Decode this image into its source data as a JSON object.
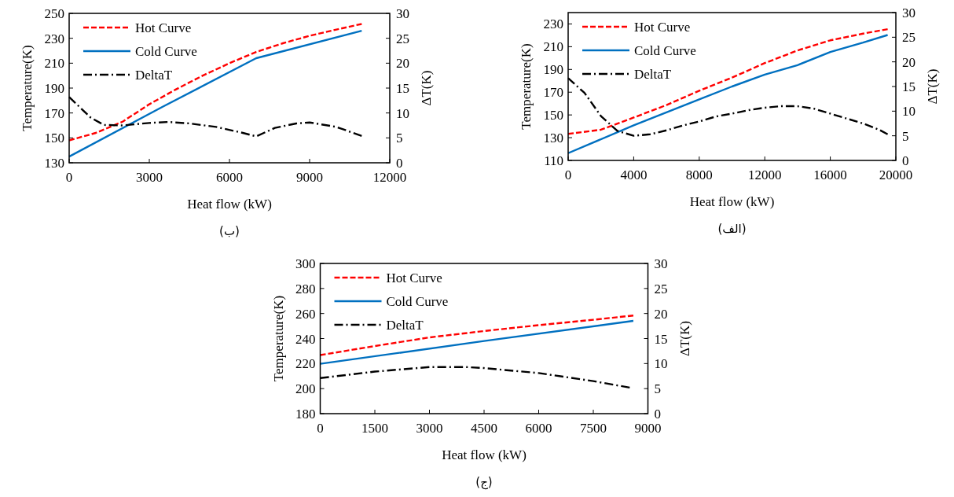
{
  "chart_data": [
    {
      "type": "line",
      "xlabel": "Heat flow (kW)",
      "ylabel": "Temperature(K)",
      "y2label": "ΔT(K)",
      "xlim": [
        0,
        12000
      ],
      "xticks": [
        0,
        3000,
        6000,
        9000,
        12000
      ],
      "ylim": [
        130,
        250
      ],
      "yticks": [
        130,
        150,
        170,
        190,
        210,
        230,
        250
      ],
      "y2lim": [
        0,
        30
      ],
      "y2ticks": [
        0,
        5,
        10,
        15,
        20,
        25,
        30
      ],
      "legend": "top left",
      "annotations": [
        "(ب)"
      ],
      "series": [
        {
          "name": "Hot Curve",
          "color": "#ff0000",
          "line_style": "dashed",
          "x": [
            0,
            1000,
            2000,
            3000,
            4000,
            5000,
            6000,
            7000,
            8000,
            9000,
            10000,
            10950
          ],
          "values": [
            148,
            154,
            163,
            177,
            189,
            200,
            210,
            219,
            226,
            232,
            237,
            241.5
          ]
        },
        {
          "name": "Cold Curve",
          "color": "#0070c0",
          "line_style": "solid",
          "x": [
            0,
            3500,
            7000,
            10950
          ],
          "values": [
            135,
            175,
            214,
            236
          ]
        },
        {
          "name": "DeltaT",
          "color": "#000000",
          "line_style": "dashdot",
          "axis": "y2",
          "x": [
            0,
            800,
            1300,
            2000,
            3000,
            3700,
            4500,
            5500,
            6500,
            7000,
            7700,
            8500,
            9000,
            10000,
            10950
          ],
          "values": [
            13.2,
            9.1,
            7.6,
            7.5,
            8.0,
            8.2,
            7.9,
            7.2,
            6.0,
            5.3,
            7.0,
            7.9,
            8.1,
            7.2,
            5.4
          ]
        }
      ]
    },
    {
      "type": "line",
      "xlabel": "Heat flow (kW)",
      "ylabel": "Temperature(K)",
      "y2label": "ΔT(K)",
      "xlim": [
        0,
        20000
      ],
      "xticks": [
        0,
        4000,
        8000,
        12000,
        16000,
        20000
      ],
      "ylim": [
        110,
        240
      ],
      "yticks": [
        110,
        130,
        150,
        170,
        190,
        210,
        230
      ],
      "y2lim": [
        0,
        30
      ],
      "y2ticks": [
        0,
        5,
        10,
        15,
        20,
        25,
        30
      ],
      "legend": "top left",
      "annotations": [
        "(الف)"
      ],
      "series": [
        {
          "name": "Hot Curve",
          "color": "#ff0000",
          "line_style": "dashed",
          "x": [
            0,
            2000,
            4000,
            6000,
            8000,
            10000,
            12000,
            14000,
            16000,
            18000,
            19500
          ],
          "values": [
            133.3,
            137,
            147.7,
            158.7,
            171.3,
            182.8,
            195.6,
            206.7,
            215.6,
            221.5,
            225.4
          ]
        },
        {
          "name": "Cold Curve",
          "color": "#0070c0",
          "line_style": "solid",
          "x": [
            0,
            4000,
            8000,
            10000,
            12000,
            14000,
            16000,
            18000,
            19500
          ],
          "values": [
            116.4,
            140.8,
            163.6,
            175,
            185.4,
            193.8,
            205.4,
            213.6,
            220.3
          ]
        },
        {
          "name": "DeltaT",
          "color": "#000000",
          "line_style": "dashdot",
          "axis": "y2",
          "x": [
            0,
            1000,
            2000,
            3000,
            4000,
            5000,
            6000,
            7000,
            8000,
            9000,
            10000,
            11000,
            12000,
            13000,
            14000,
            15000,
            16000,
            17000,
            18000,
            19000,
            19500
          ],
          "values": [
            16.7,
            13.7,
            9.0,
            6.0,
            5.0,
            5.3,
            6.1,
            7.1,
            7.9,
            8.9,
            9.5,
            10.2,
            10.7,
            11.0,
            11.0,
            10.5,
            9.5,
            8.5,
            7.5,
            6.2,
            5.3
          ]
        }
      ]
    },
    {
      "type": "line",
      "xlabel": "Heat flow (kW)",
      "ylabel": "Temperature(K)",
      "y2label": "ΔT(K)",
      "xlim": [
        0,
        9000
      ],
      "xticks": [
        0,
        1500,
        3000,
        4500,
        6000,
        7500,
        9000
      ],
      "ylim": [
        180,
        300
      ],
      "yticks": [
        180,
        200,
        220,
        240,
        260,
        280,
        300
      ],
      "y2lim": [
        0,
        30
      ],
      "y2ticks": [
        0,
        5,
        10,
        15,
        20,
        25,
        30
      ],
      "legend": "top left",
      "annotations": [
        "(ج)"
      ],
      "series": [
        {
          "name": "Hot Curve",
          "color": "#ff0000",
          "line_style": "dashed",
          "x": [
            0,
            1500,
            3000,
            4500,
            6000,
            7500,
            8600
          ],
          "values": [
            226.8,
            234,
            240.9,
            246,
            250.7,
            255,
            258.4
          ]
        },
        {
          "name": "Cold Curve",
          "color": "#0070c0",
          "line_style": "solid",
          "x": [
            0,
            4500,
            8600
          ],
          "values": [
            219.8,
            238,
            254.1
          ]
        },
        {
          "name": "DeltaT",
          "color": "#000000",
          "line_style": "dashdot",
          "axis": "y2",
          "x": [
            0,
            1500,
            3000,
            4000,
            4500,
            6000,
            7500,
            8500
          ],
          "values": [
            7.1,
            8.4,
            9.3,
            9.3,
            9.1,
            8.1,
            6.5,
            5.2
          ]
        }
      ]
    }
  ]
}
